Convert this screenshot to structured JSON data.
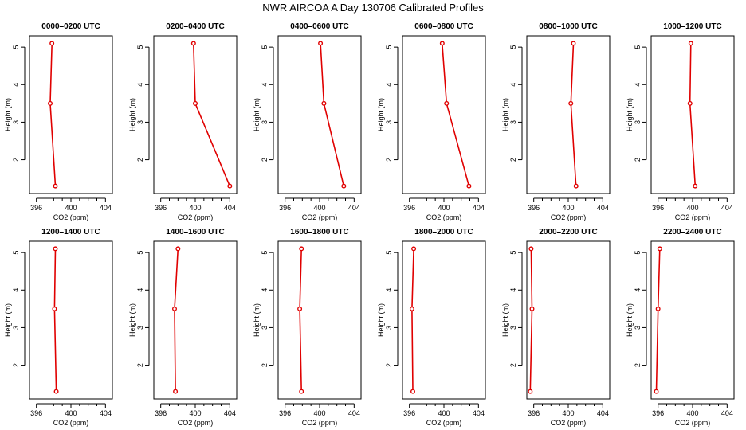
{
  "title": "NWR AIRCOA A  Day 130706  Calibrated Profiles",
  "chart_data": {
    "type": "line",
    "xlabel": "CO2 (ppm)",
    "ylabel": "Height (m)",
    "xlim": [
      395.2,
      404.8
    ],
    "ylim": [
      1.1,
      5.3
    ],
    "xticks": [
      396,
      400,
      404
    ],
    "yticks": [
      2,
      3,
      4,
      5
    ],
    "series_color": "#e00000",
    "panels": [
      {
        "title": "0000–0200 UTC",
        "heights": [
          5.1,
          3.5,
          1.3
        ],
        "co2": [
          397.8,
          397.6,
          398.2
        ]
      },
      {
        "title": "0200–0400 UTC",
        "heights": [
          5.1,
          3.5,
          1.3
        ],
        "co2": [
          399.8,
          400.0,
          404.0
        ]
      },
      {
        "title": "0400–0600 UTC",
        "heights": [
          5.1,
          3.5,
          1.3
        ],
        "co2": [
          400.1,
          400.5,
          402.8
        ]
      },
      {
        "title": "0600–0800 UTC",
        "heights": [
          5.1,
          3.5,
          1.3
        ],
        "co2": [
          399.8,
          400.3,
          402.9
        ]
      },
      {
        "title": "0800–1000 UTC",
        "heights": [
          5.1,
          3.5,
          1.3
        ],
        "co2": [
          400.6,
          400.3,
          400.9
        ]
      },
      {
        "title": "1000–1200 UTC",
        "heights": [
          5.1,
          3.5,
          1.3
        ],
        "co2": [
          399.8,
          399.7,
          400.3
        ]
      },
      {
        "title": "1200–1400 UTC",
        "heights": [
          5.1,
          3.5,
          1.3
        ],
        "co2": [
          398.2,
          398.1,
          398.3
        ]
      },
      {
        "title": "1400–1600 UTC",
        "heights": [
          5.1,
          3.5,
          1.3
        ],
        "co2": [
          398.0,
          397.6,
          397.7
        ]
      },
      {
        "title": "1600–1800 UTC",
        "heights": [
          5.1,
          3.5,
          1.3
        ],
        "co2": [
          397.9,
          397.7,
          397.9
        ]
      },
      {
        "title": "1800–2000 UTC",
        "heights": [
          5.1,
          3.5,
          1.3
        ],
        "co2": [
          396.5,
          396.3,
          396.4
        ]
      },
      {
        "title": "2000–2200 UTC",
        "heights": [
          5.1,
          3.5,
          1.3
        ],
        "co2": [
          395.7,
          395.8,
          395.6
        ]
      },
      {
        "title": "2200–2400 UTC",
        "heights": [
          5.1,
          3.5,
          1.3
        ],
        "co2": [
          396.2,
          396.0,
          395.8
        ]
      }
    ]
  }
}
